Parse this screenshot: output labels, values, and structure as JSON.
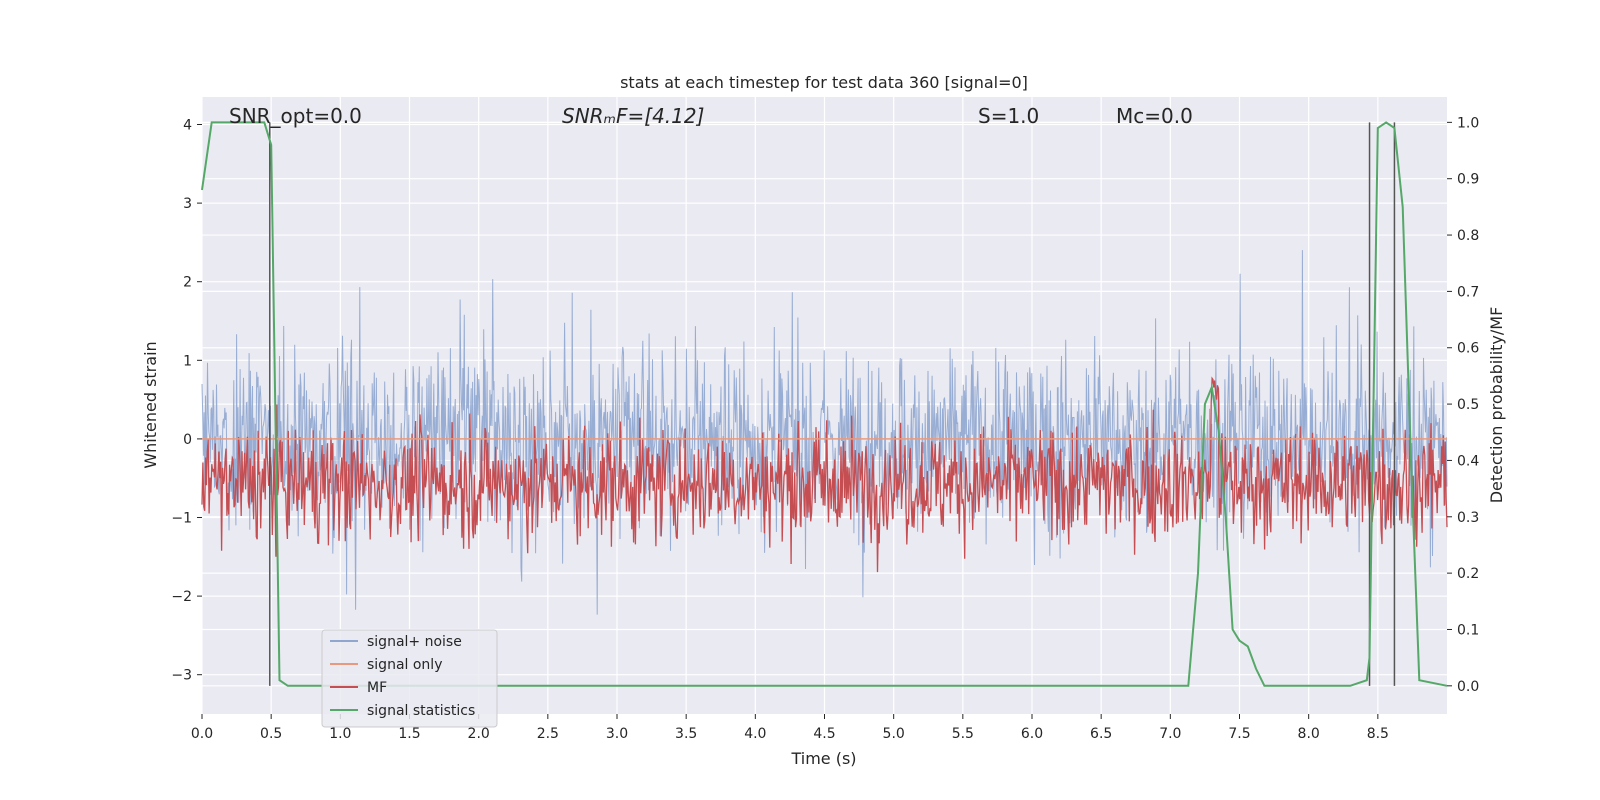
{
  "chart_data": {
    "type": "line",
    "title": "stats at each timestep for test data 360 [signal=0]",
    "xlabel": "Time (s)",
    "ylabel": "Whitened strain",
    "y2label": "Detection probability/MF",
    "xlim": [
      0.0,
      9.0
    ],
    "ylim": [
      -3.5,
      4.35
    ],
    "y2lim": [
      -0.05,
      1.045
    ],
    "x_ticks": [
      "0.0",
      "0.5",
      "1.0",
      "1.5",
      "2.0",
      "2.5",
      "3.0",
      "3.5",
      "4.0",
      "4.5",
      "5.0",
      "5.5",
      "6.0",
      "6.5",
      "7.0",
      "7.5",
      "8.0",
      "8.5"
    ],
    "y_ticks": [
      "4",
      "3",
      "2",
      "1",
      "0",
      "−1",
      "−2",
      "−3"
    ],
    "y2_ticks": [
      "1.0",
      "0.9",
      "0.8",
      "0.7",
      "0.6",
      "0.5",
      "0.4",
      "0.3",
      "0.2",
      "0.1",
      "0.0"
    ],
    "grid": true,
    "legend_position": "lower-left",
    "annotations": [
      {
        "text": "SNR_opt=0.0",
        "x": 0.2,
        "y": 4.1
      },
      {
        "text": "SNRₘF=[4.12]",
        "x": 2.6,
        "y": 4.1
      },
      {
        "text": "S=1.0",
        "x": 5.6,
        "y": 4.1
      },
      {
        "text": "Mᴄ=0.0",
        "x": 6.6,
        "y": 4.1
      }
    ],
    "series": [
      {
        "name": "signal+ noise",
        "color": "#8fa6cf",
        "axis": "left",
        "values": []
      },
      {
        "name": "signal only",
        "color": "#e99a7e",
        "axis": "left",
        "values": [
          0,
          0
        ]
      },
      {
        "name": "MF",
        "color": "#c44e52",
        "axis": "right",
        "values": []
      },
      {
        "name": "signal statistics",
        "color": "#55a868",
        "axis": "right",
        "x": [
          0.0,
          0.07,
          0.2,
          0.3,
          0.4,
          0.45,
          0.5,
          0.56,
          0.62,
          1.0,
          2.0,
          3.0,
          4.0,
          5.0,
          6.0,
          7.0,
          7.13,
          7.2,
          7.25,
          7.3,
          7.35,
          7.4,
          7.45,
          7.5,
          7.56,
          7.62,
          7.68,
          7.8,
          8.0,
          8.3,
          8.42,
          8.44,
          8.5,
          8.56,
          8.62,
          8.68,
          8.74,
          8.8,
          9.0
        ],
        "values": [
          0.88,
          1.0,
          1.0,
          1.0,
          1.0,
          1.0,
          0.96,
          0.01,
          0.0,
          0.0,
          0.0,
          0.0,
          0.0,
          0.0,
          0.0,
          0.0,
          0.0,
          0.2,
          0.5,
          0.53,
          0.45,
          0.3,
          0.1,
          0.08,
          0.07,
          0.03,
          0.0,
          0.0,
          0.0,
          0.0,
          0.01,
          0.05,
          0.99,
          1.0,
          0.99,
          0.85,
          0.4,
          0.01,
          0.0
        ]
      },
      {
        "name": "",
        "color": "#555555",
        "axis": "right",
        "vlines": [
          0.49,
          8.44,
          8.62
        ]
      }
    ]
  }
}
